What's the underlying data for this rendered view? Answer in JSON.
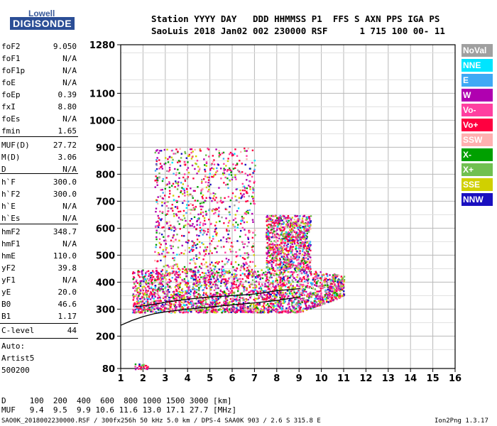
{
  "logo": {
    "line1": "Lowell",
    "line2": "DIGISONDE"
  },
  "header": {
    "line1": "Station YYYY DAY   DDD HHMMSS P1  FFS S AXN PPS IGA PS",
    "line2": "SaoLuis 2018 Jan02 002 230000 RSF      1 715 100 00- 11"
  },
  "params_group1": [
    {
      "label": "foF2",
      "value": "9.050"
    },
    {
      "label": "foF1",
      "value": "N/A"
    },
    {
      "label": "foF1p",
      "value": "N/A"
    },
    {
      "label": "foE",
      "value": "N/A"
    },
    {
      "label": "foEp",
      "value": "0.39"
    },
    {
      "label": "fxI",
      "value": "8.80"
    },
    {
      "label": "foEs",
      "value": "N/A"
    },
    {
      "label": "fmin",
      "value": "1.65"
    }
  ],
  "params_group2": [
    {
      "label": "MUF(D)",
      "value": "27.72"
    },
    {
      "label": "M(D)",
      "value": "3.06"
    },
    {
      "label": "D",
      "value": "N/A"
    }
  ],
  "params_group3": [
    {
      "label": "h`F",
      "value": "300.0"
    },
    {
      "label": "h`F2",
      "value": "300.0"
    },
    {
      "label": "h`E",
      "value": "N/A"
    },
    {
      "label": "h`Es",
      "value": "N/A"
    }
  ],
  "params_group4": [
    {
      "label": "hmF2",
      "value": "348.7"
    },
    {
      "label": "hmF1",
      "value": "N/A"
    },
    {
      "label": "hmE",
      "value": "110.0"
    },
    {
      "label": "yF2",
      "value": "39.8"
    },
    {
      "label": "yF1",
      "value": "N/A"
    },
    {
      "label": "yE",
      "value": "20.0"
    },
    {
      "label": "B0",
      "value": "46.6"
    },
    {
      "label": "B1",
      "value": "1.17"
    }
  ],
  "clevel": {
    "label": "C-level",
    "value": "44"
  },
  "autoscaling": {
    "line1": "Auto:",
    "line2": "Artist5",
    "line3": "500200"
  },
  "footer": {
    "d_row": "D     100  200  400  600  800 1000 1500 3000 [km]",
    "muf_row": "MUF   9.4  9.5  9.9 10.6 11.6 13.0 17.1 27.7 [MHz]",
    "file_line": "SAO0K_2018002230000.RSF / 300fx256h 50 kHz 5.0 km / DPS-4 SAA0K 903 / 2.6 S 315.8 E",
    "version": "Ion2Png 1.3.17"
  },
  "legend": [
    {
      "label": "NoVal",
      "color": "#a0a0a0"
    },
    {
      "label": "NNE",
      "color": "#00e5ff"
    },
    {
      "label": "E",
      "color": "#3fa9f5"
    },
    {
      "label": "W",
      "color": "#b000b0"
    },
    {
      "label": "Vo-",
      "color": "#ff3fa0"
    },
    {
      "label": "Vo+",
      "color": "#ff0040"
    },
    {
      "label": "SSW",
      "color": "#ffb0b0"
    },
    {
      "label": "X-",
      "color": "#00a000"
    },
    {
      "label": "X+",
      "color": "#70c050"
    },
    {
      "label": "SSE",
      "color": "#d0d000"
    },
    {
      "label": "NNW",
      "color": "#1a10c0"
    }
  ],
  "chart_data": {
    "type": "scatter",
    "xlabel": "",
    "ylabel": "",
    "x_ticks": [
      "1",
      "2",
      "3",
      "4",
      "5",
      "6",
      "7",
      "8",
      "9",
      "10",
      "11",
      "12",
      "13",
      "14",
      "15",
      "16"
    ],
    "y_ticks": [
      "80",
      "200",
      "300",
      "400",
      "500",
      "600",
      "700",
      "800",
      "900",
      "1000",
      "1100",
      "1280"
    ],
    "xlim": [
      1,
      16
    ],
    "ylim": [
      80,
      1280
    ],
    "grid": true,
    "legend_position": "right",
    "profile_curve": {
      "x": [
        1.0,
        1.5,
        2.0,
        2.5,
        3.0,
        4.0,
        5.0,
        6.0,
        7.0,
        8.0,
        9.0
      ],
      "y": [
        240,
        258,
        272,
        283,
        290,
        300,
        308,
        316,
        323,
        332,
        345
      ]
    },
    "trace_curve": {
      "x": [
        1.65,
        2.0,
        2.5,
        3.0,
        4.0,
        5.0,
        6.0,
        7.0,
        8.0,
        8.5,
        9.05
      ],
      "y": [
        310,
        312,
        318,
        325,
        337,
        345,
        350,
        356,
        368,
        372,
        376
      ]
    },
    "echo_regions": [
      {
        "x": [
          1.5,
          11.0
        ],
        "y": [
          290,
          450
        ],
        "density": "high"
      },
      {
        "x": [
          2.5,
          7.0
        ],
        "y": [
          450,
          900
        ],
        "density": "medium"
      },
      {
        "x": [
          7.5,
          9.5
        ],
        "y": [
          450,
          650
        ],
        "density": "medium"
      },
      {
        "x": [
          1.6,
          2.2
        ],
        "y": [
          80,
          100
        ],
        "density": "low"
      }
    ]
  }
}
